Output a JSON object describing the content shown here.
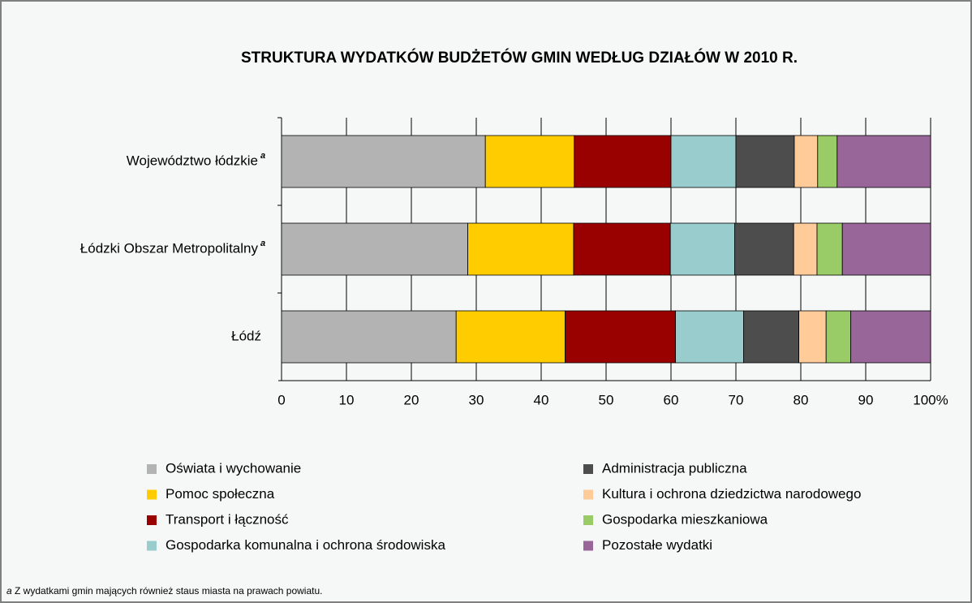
{
  "chart_data": {
    "type": "stacked_bar_horizontal",
    "title": "STRUKTURA WYDATKÓW BUDŻETÓW GMIN WEDŁUG DZIAŁÓW W 2010 R.",
    "categories": [
      "Województwo łódzkie",
      "Łódzki Obszar Metropolitalny",
      "Łódź"
    ],
    "category_notes": [
      "a",
      "a",
      null
    ],
    "series": [
      {
        "name": "Oświata i wychowanie",
        "color": "#b3b3b3",
        "values": [
          31.4,
          28.7,
          26.9
        ]
      },
      {
        "name": "Pomoc społeczna",
        "color": "#ffcc00",
        "values": [
          13.7,
          16.3,
          16.8
        ]
      },
      {
        "name": "Transport i łączność",
        "color": "#990000",
        "values": [
          14.9,
          14.9,
          17.0
        ]
      },
      {
        "name": "Gospodarka komunalna i ochrona środowiska",
        "color": "#99cccc",
        "values": [
          10.0,
          9.9,
          10.5
        ]
      },
      {
        "name": "Administracja publiczna",
        "color": "#4d4d4d",
        "values": [
          9.0,
          9.1,
          8.5
        ]
      },
      {
        "name": "Kultura i ochrona dziedzictwa narodowego",
        "color": "#ffcc99",
        "values": [
          3.6,
          3.6,
          4.2
        ]
      },
      {
        "name": "Gospodarka mieszkaniowa",
        "color": "#99cc66",
        "values": [
          3.0,
          3.9,
          3.8
        ]
      },
      {
        "name": "Pozostałe wydatki",
        "color": "#996699",
        "values": [
          14.4,
          13.6,
          12.3
        ]
      }
    ],
    "xlim": [
      0,
      100
    ],
    "xticks": [
      0,
      10,
      20,
      30,
      40,
      50,
      60,
      70,
      80,
      90,
      {
        "value": 100,
        "label": "100%"
      }
    ],
    "grid": true,
    "footnote": {
      "marker": "a",
      "text": "Z wydatkami gmin mających również staus miasta na prawach powiatu."
    }
  }
}
